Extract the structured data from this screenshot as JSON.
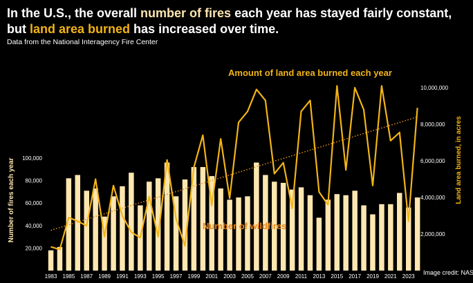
{
  "headline": {
    "part1": "In the U.S., the overall ",
    "highlight1": "number of fires",
    "part2": " each year has stayed fairly constant,",
    "part3": "but ",
    "highlight2": "land area burned",
    "part4": " has increased over time."
  },
  "source": "Data from the National Interagency Fire Center",
  "credit": "Image credit: NASA",
  "colors": {
    "background": "#000000",
    "bars": "#fde6b0",
    "line": "#f3b417",
    "trend": "#d98a1a",
    "wildfire_label": "#e8871c",
    "text": "#ffffff"
  },
  "chart_data": {
    "type": "bar",
    "title": "",
    "years": [
      1983,
      1984,
      1985,
      1986,
      1987,
      1988,
      1989,
      1990,
      1991,
      1992,
      1993,
      1994,
      1995,
      1996,
      1997,
      1998,
      1999,
      2000,
      2001,
      2002,
      2003,
      2004,
      2005,
      2006,
      2007,
      2008,
      2009,
      2010,
      2011,
      2012,
      2013,
      2014,
      2015,
      2016,
      2017,
      2018,
      2019,
      2020,
      2021,
      2022,
      2023,
      2024
    ],
    "x_tick_labels": [
      "1983",
      "1985",
      "1987",
      "1989",
      "1991",
      "1993",
      "1995",
      "1997",
      "1999",
      "2001",
      "2003",
      "2005",
      "2007",
      "2009",
      "2011",
      "2013",
      "2015",
      "2017",
      "2019",
      "2021",
      "2023"
    ],
    "x_tick_years": [
      1983,
      1985,
      1987,
      1989,
      1991,
      1993,
      1995,
      1997,
      1999,
      2001,
      2003,
      2005,
      2007,
      2009,
      2011,
      2013,
      2015,
      2017,
      2019,
      2021,
      2023
    ],
    "series": [
      {
        "name": "Number of wildfires",
        "type": "bar",
        "axis": "left",
        "values": [
          18000,
          21000,
          82000,
          85000,
          71000,
          73000,
          48000,
          66000,
          75000,
          87000,
          58000,
          79000,
          82000,
          96000,
          66000,
          81000,
          92000,
          92000,
          84000,
          73000,
          63000,
          65000,
          66000,
          96000,
          85000,
          79000,
          78000,
          72000,
          74000,
          67000,
          47000,
          63000,
          68000,
          67000,
          71000,
          58000,
          50000,
          59000,
          59000,
          69000,
          56000,
          65000
        ]
      },
      {
        "name": "Amount of land area burned each year",
        "type": "line",
        "axis": "right",
        "values": [
          1300000,
          1150000,
          2900000,
          2700000,
          2450000,
          5000000,
          1850000,
          4650000,
          3000000,
          2100000,
          1800000,
          4050000,
          1850000,
          6050000,
          2850000,
          1350000,
          5650000,
          7400000,
          3550000,
          7200000,
          3950000,
          8100000,
          8700000,
          9900000,
          9300000,
          5300000,
          5900000,
          3400000,
          8700000,
          9300000,
          4300000,
          3600000,
          10100000,
          5500000,
          10000000,
          8800000,
          4650000,
          10100000,
          7100000,
          7550000,
          2700000,
          8900000
        ]
      }
    ],
    "trend_line": {
      "axis": "right",
      "start": [
        1983,
        2200000
      ],
      "end": [
        2024,
        8400000
      ]
    },
    "ylabel": "Number of fires each year",
    "ylabel_right": "Land area burned, in acres",
    "ylim": [
      0,
      120000
    ],
    "ylim_right": [
      0,
      10400000
    ],
    "yticks": [
      20000,
      40000,
      60000,
      80000,
      100000
    ],
    "ytick_labels": [
      "20,000",
      "40,000",
      "60,000",
      "80,000",
      "100,000"
    ],
    "yticks_right": [
      2000000,
      4000000,
      6000000,
      8000000,
      10000000
    ],
    "ytick_labels_right": [
      "2,000,000",
      "4,000,000",
      "6,000,000",
      "8,000,000",
      "10,000,000"
    ],
    "annotations": {
      "line_label": "Amount of land area burned each year",
      "bar_label": "Number of wildfires"
    },
    "grid": false,
    "legend": "none"
  }
}
